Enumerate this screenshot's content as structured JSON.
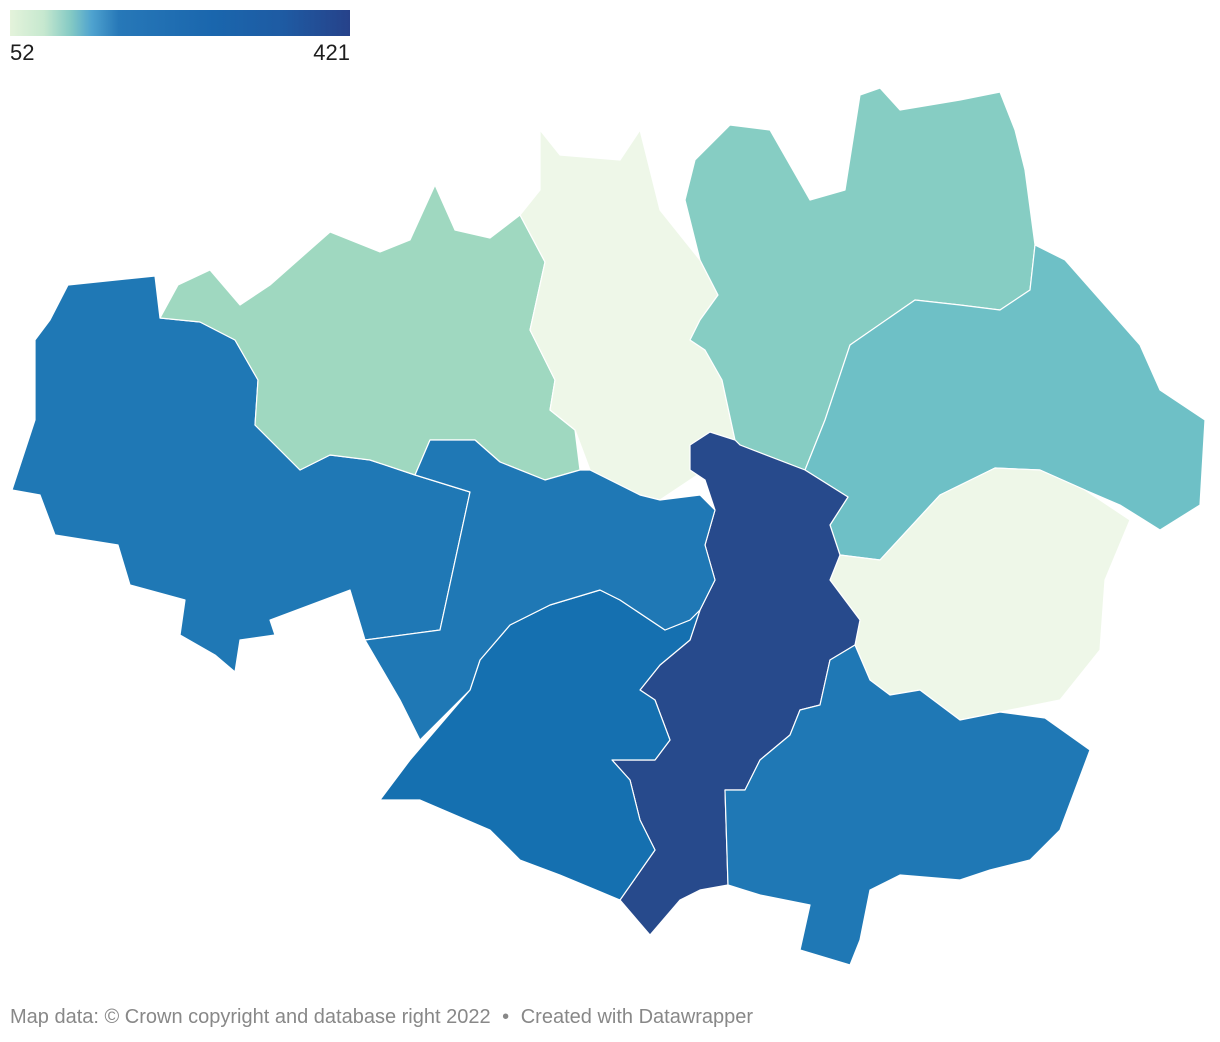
{
  "legend": {
    "min_label": "52",
    "max_label": "421"
  },
  "footer": {
    "map_credit": "Map data: © Crown copyright and database right 2022",
    "separator": "•",
    "tool_credit": "Created with Datawrapper"
  },
  "colors": {
    "lightest": "#eef7e8",
    "light_green": "#9fd8c0",
    "teal": "#86cdc3",
    "teal_dark": "#6ec0c6",
    "blue": "#1f78b5",
    "blue_mid": "#1570b0",
    "navy": "#274a8c"
  }
}
